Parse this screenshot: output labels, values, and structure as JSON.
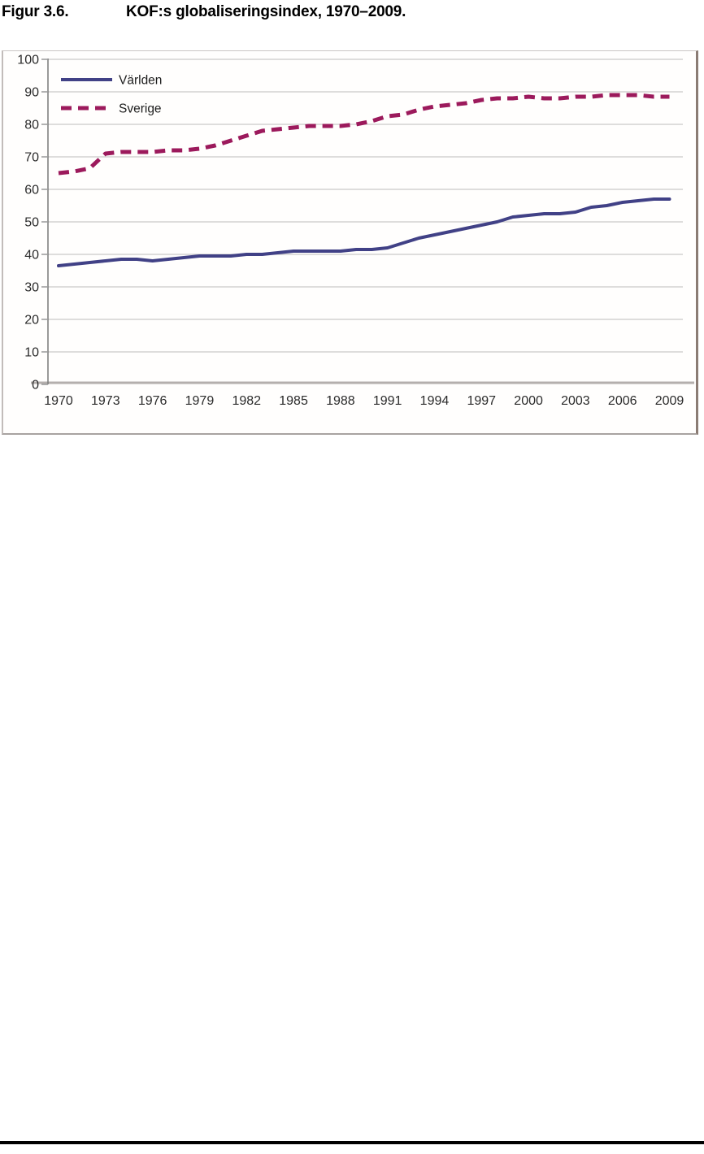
{
  "title": {
    "figure_label": "Figur 3.6.",
    "text": "KOF:s globaliseringsindex, 1970–2009."
  },
  "chart_data": {
    "type": "line",
    "title": "KOF:s globaliseringsindex, 1970–2009",
    "xlabel": "",
    "ylabel": "",
    "ylim": [
      0,
      100
    ],
    "grid": true,
    "legend_position": "top-left",
    "xticks": [
      1970,
      1973,
      1976,
      1979,
      1982,
      1985,
      1988,
      1991,
      1994,
      1997,
      2000,
      2003,
      2006,
      2009
    ],
    "yticks": [
      0,
      10,
      20,
      30,
      40,
      50,
      60,
      70,
      80,
      90,
      100
    ],
    "x": [
      1970,
      1971,
      1972,
      1973,
      1974,
      1975,
      1976,
      1977,
      1978,
      1979,
      1980,
      1981,
      1982,
      1983,
      1984,
      1985,
      1986,
      1987,
      1988,
      1989,
      1990,
      1991,
      1992,
      1993,
      1994,
      1995,
      1996,
      1997,
      1998,
      1999,
      2000,
      2001,
      2002,
      2003,
      2004,
      2005,
      2006,
      2007,
      2008,
      2009
    ],
    "series": [
      {
        "name": "Världen",
        "style": "solid",
        "color": "#414186",
        "values": [
          36.5,
          37,
          37.5,
          38,
          38.5,
          38.5,
          38,
          38.5,
          39,
          39.5,
          39.5,
          39.5,
          40,
          40,
          40.5,
          41,
          41,
          41,
          41,
          41.5,
          41.5,
          42,
          43.5,
          45,
          46,
          47,
          48,
          49,
          50,
          51.5,
          52,
          52.5,
          52.5,
          53,
          54.5,
          55,
          56,
          56.5,
          57,
          57
        ]
      },
      {
        "name": "Sverige",
        "style": "dashed",
        "color": "#9c1a5c",
        "values": [
          65,
          65.5,
          66.5,
          71,
          71.5,
          71.5,
          71.5,
          72,
          72,
          72.5,
          73.5,
          75,
          76.5,
          78,
          78.5,
          79,
          79.5,
          79.5,
          79.5,
          80,
          81,
          82.5,
          83,
          84.5,
          85.5,
          86,
          86.5,
          87.5,
          88,
          88,
          88.5,
          88,
          88,
          88.5,
          88.5,
          89,
          89,
          89,
          88.5,
          88.5
        ]
      }
    ]
  }
}
